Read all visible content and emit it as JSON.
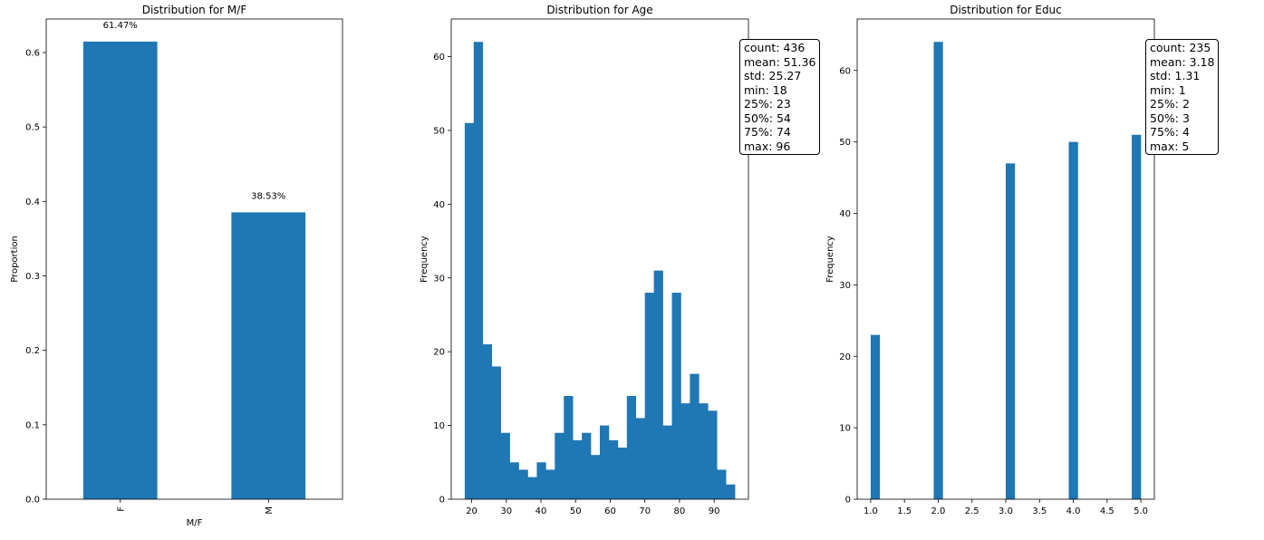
{
  "chart_data": [
    {
      "type": "bar",
      "title": "Distribution for M/F",
      "xlabel": "M/F",
      "ylabel": "Proportion",
      "categories": [
        "F",
        "M"
      ],
      "values": [
        0.6147,
        0.3853
      ],
      "value_labels": [
        "61.47%",
        "38.53%"
      ],
      "ylim": [
        0,
        0.645
      ],
      "yticks": [
        0.0,
        0.1,
        0.2,
        0.3,
        0.4,
        0.5,
        0.6
      ],
      "ytick_labels": [
        "0.0",
        "0.1",
        "0.2",
        "0.3",
        "0.4",
        "0.5",
        "0.6"
      ],
      "color": "#1f77b4",
      "grid": false
    },
    {
      "type": "histogram",
      "title": "Distribution for Age",
      "xlabel": "",
      "ylabel": "Frequency",
      "bin_start": 18,
      "bin_width": 2.6,
      "counts": [
        51,
        62,
        21,
        18,
        9,
        5,
        4,
        3,
        5,
        4,
        9,
        14,
        8,
        9,
        6,
        10,
        8,
        7,
        14,
        11,
        28,
        31,
        10,
        28,
        13,
        17,
        13,
        12,
        4,
        2
      ],
      "xlim": [
        14.1,
        99.9
      ],
      "ylim": [
        0,
        65.1
      ],
      "xticks": [
        20,
        30,
        40,
        50,
        60,
        70,
        80,
        90
      ],
      "xtick_labels": [
        "20",
        "30",
        "40",
        "50",
        "60",
        "70",
        "80",
        "90"
      ],
      "yticks": [
        0,
        10,
        20,
        30,
        40,
        50,
        60
      ],
      "ytick_labels": [
        "0",
        "10",
        "20",
        "30",
        "40",
        "50",
        "60"
      ],
      "color": "#1f77b4",
      "grid": false,
      "stats": [
        "count: 436",
        "mean: 51.36",
        "std: 25.27",
        "min: 18",
        "25%: 23",
        "50%: 54",
        "75%: 74",
        "max: 96"
      ]
    },
    {
      "type": "histogram",
      "title": "Distribution for Educ",
      "xlabel": "",
      "ylabel": "Frequency",
      "bin_start": 1,
      "bin_width": 0.1333,
      "counts": [
        23,
        0,
        0,
        0,
        0,
        0,
        0,
        64,
        0,
        0,
        0,
        0,
        0,
        0,
        0,
        47,
        0,
        0,
        0,
        0,
        0,
        0,
        50,
        0,
        0,
        0,
        0,
        0,
        0,
        51
      ],
      "xlim": [
        0.8,
        5.2
      ],
      "ylim": [
        0,
        67.2
      ],
      "xticks": [
        1.0,
        1.5,
        2.0,
        2.5,
        3.0,
        3.5,
        4.0,
        4.5,
        5.0
      ],
      "xtick_labels": [
        "1.0",
        "1.5",
        "2.0",
        "2.5",
        "3.0",
        "3.5",
        "4.0",
        "4.5",
        "5.0"
      ],
      "yticks": [
        0,
        10,
        20,
        30,
        40,
        50,
        60
      ],
      "ytick_labels": [
        "0",
        "10",
        "20",
        "30",
        "40",
        "50",
        "60"
      ],
      "color": "#1f77b4",
      "grid": false,
      "stats": [
        "count: 235",
        "mean: 3.18",
        "std: 1.31",
        "min: 1",
        "25%: 2",
        "50%: 3",
        "75%: 4",
        "max: 5"
      ]
    }
  ]
}
